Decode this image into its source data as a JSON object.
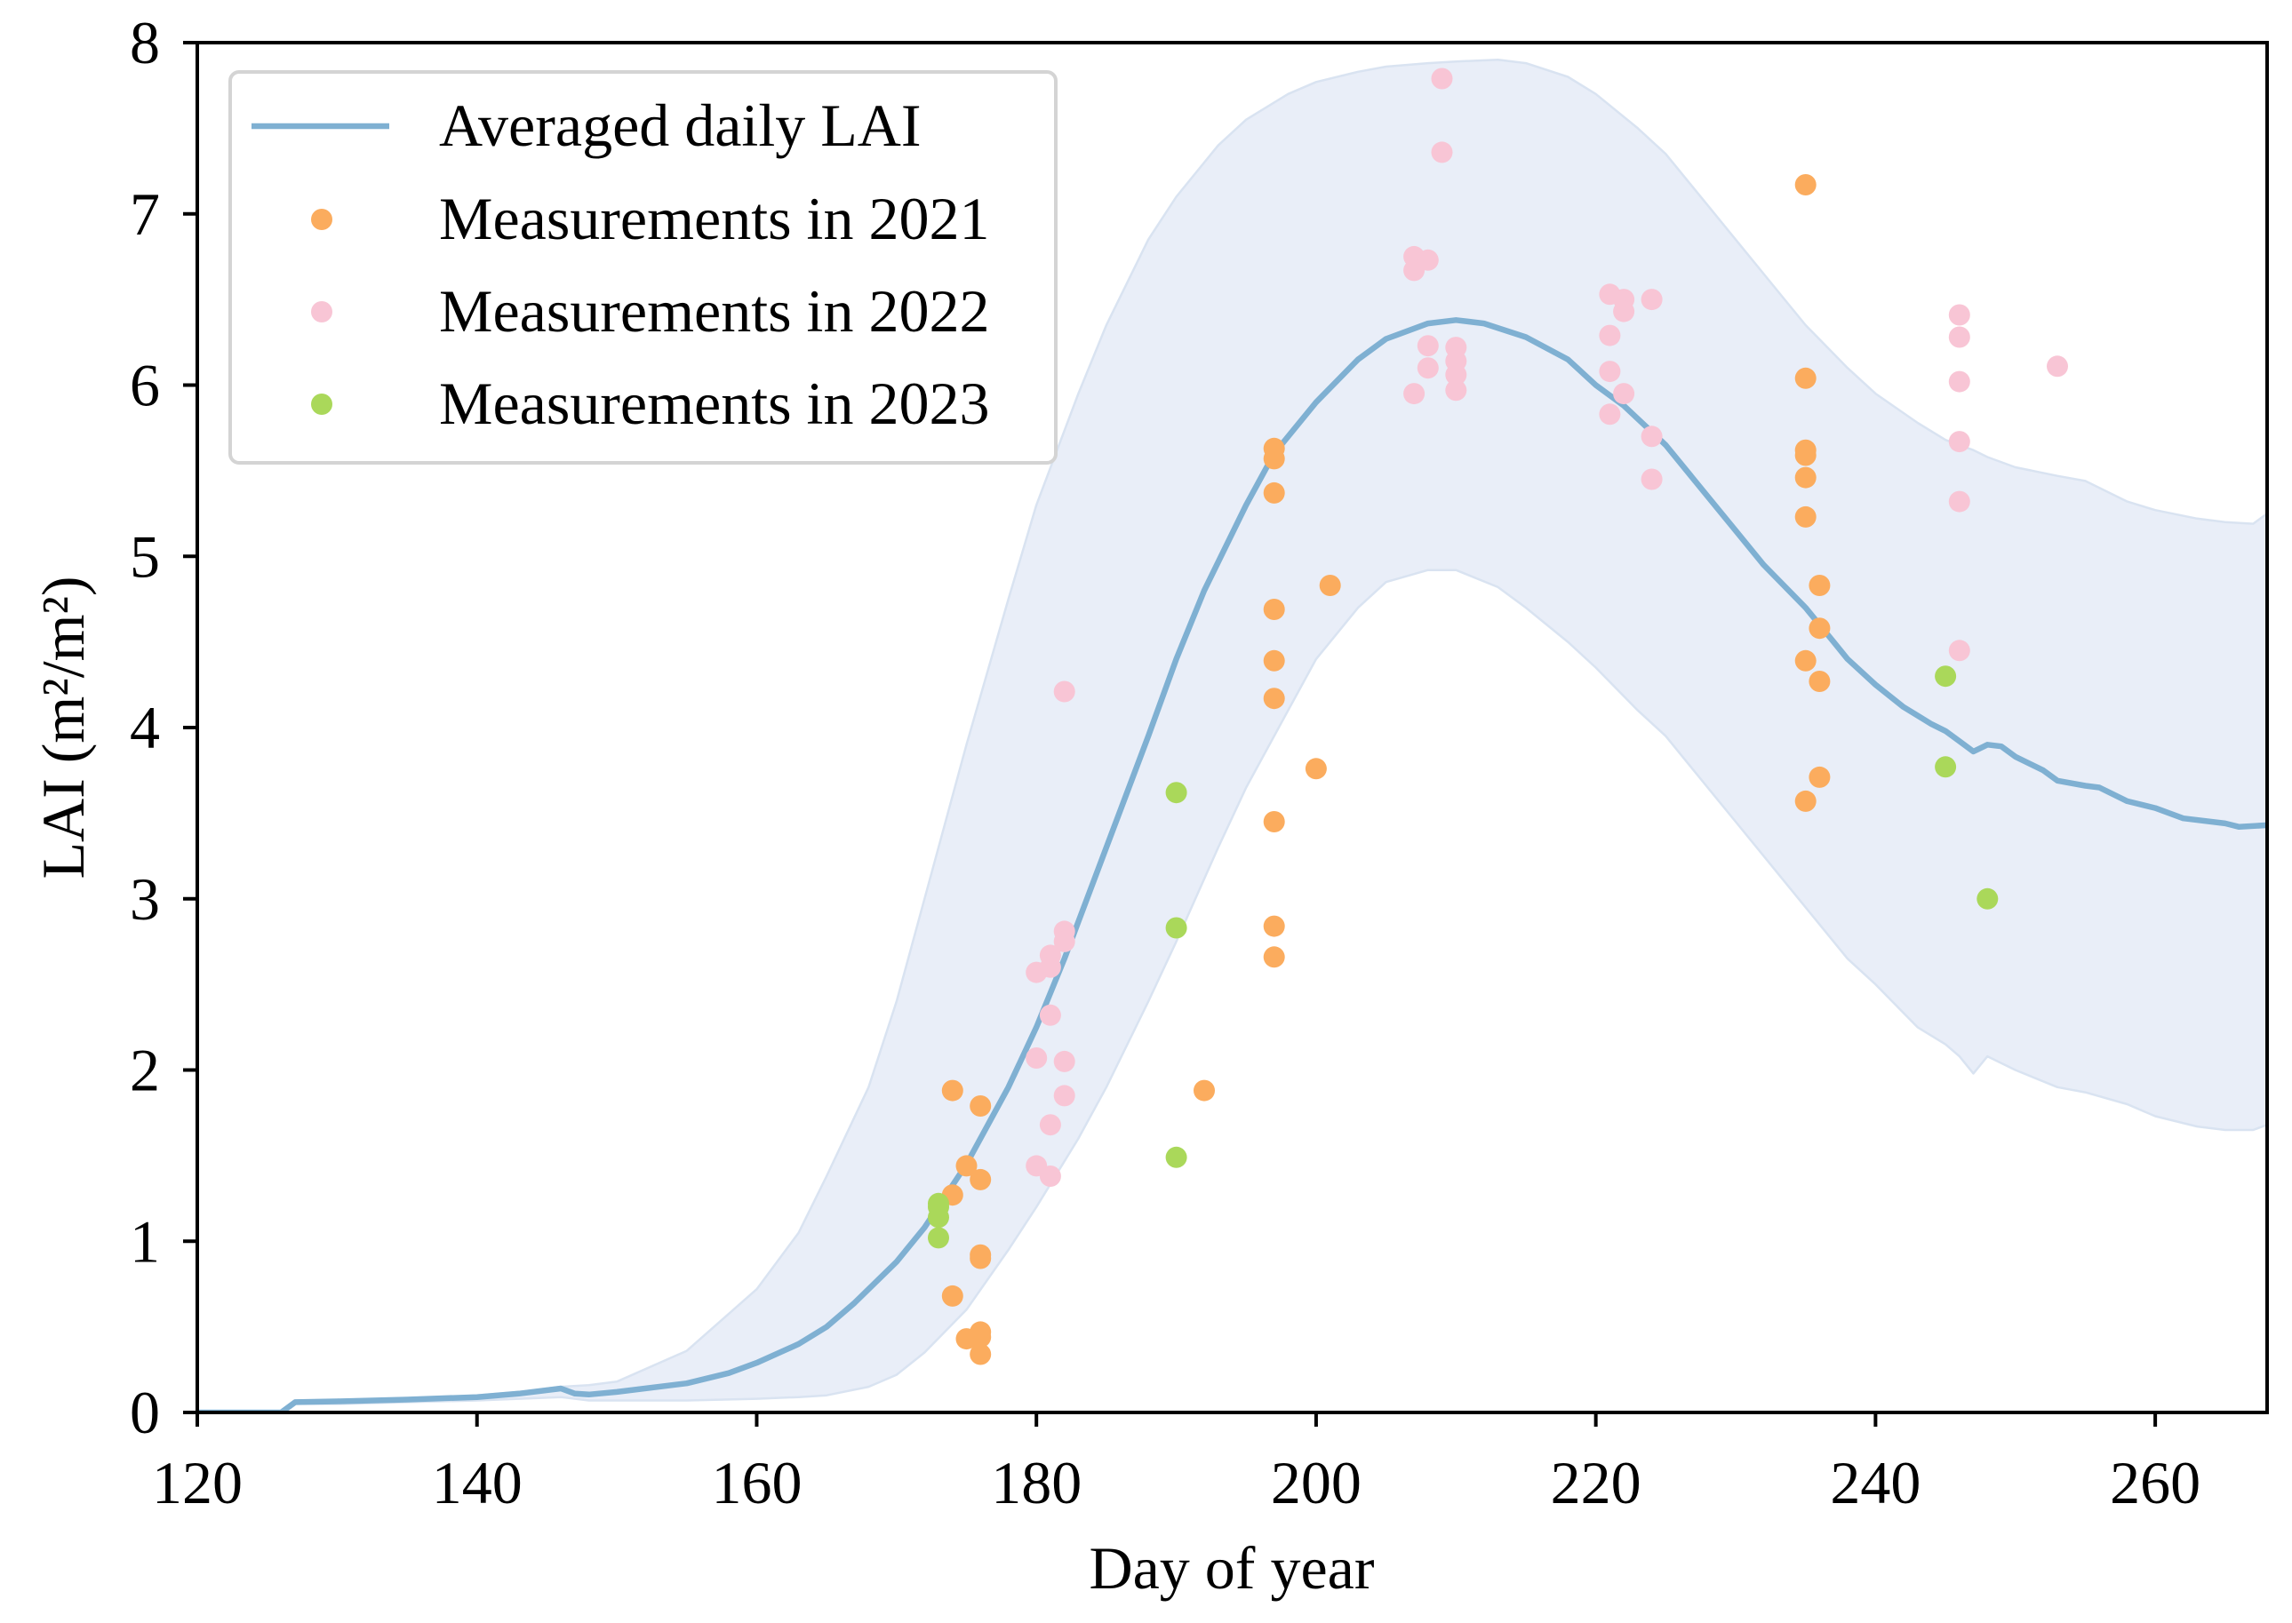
{
  "chart_data": {
    "type": "line",
    "xlabel": "Day of year",
    "ylabel": "LAI (m²/m²)",
    "xlim": [
      120,
      268
    ],
    "ylim": [
      0,
      8
    ],
    "xticks": [
      120,
      140,
      160,
      180,
      200,
      220,
      240,
      260
    ],
    "yticks": [
      0,
      1,
      2,
      3,
      4,
      5,
      6,
      7,
      8
    ],
    "grid": false,
    "legend_position": "top-left",
    "band": {
      "color": "#e9eef8",
      "edge_color": "#d9e3f1",
      "upper": [
        [
          120,
          0
        ],
        [
          126,
          0
        ],
        [
          127,
          0.06
        ],
        [
          130,
          0.07
        ],
        [
          135,
          0.08
        ],
        [
          140,
          0.1
        ],
        [
          143,
          0.12
        ],
        [
          146,
          0.15
        ],
        [
          148,
          0.16
        ],
        [
          150,
          0.18
        ],
        [
          155,
          0.36
        ],
        [
          160,
          0.72
        ],
        [
          163,
          1.05
        ],
        [
          165,
          1.38
        ],
        [
          168,
          1.9
        ],
        [
          170,
          2.4
        ],
        [
          172,
          3.0
        ],
        [
          175,
          3.9
        ],
        [
          178,
          4.75
        ],
        [
          180,
          5.3
        ],
        [
          183,
          5.95
        ],
        [
          185,
          6.35
        ],
        [
          188,
          6.85
        ],
        [
          190,
          7.1
        ],
        [
          193,
          7.4
        ],
        [
          195,
          7.55
        ],
        [
          198,
          7.7
        ],
        [
          200,
          7.77
        ],
        [
          203,
          7.83
        ],
        [
          205,
          7.86
        ],
        [
          208,
          7.88
        ],
        [
          210,
          7.89
        ],
        [
          213,
          7.9
        ],
        [
          215,
          7.88
        ],
        [
          218,
          7.8
        ],
        [
          220,
          7.7
        ],
        [
          223,
          7.5
        ],
        [
          225,
          7.35
        ],
        [
          228,
          7.05
        ],
        [
          230,
          6.85
        ],
        [
          233,
          6.55
        ],
        [
          235,
          6.35
        ],
        [
          238,
          6.1
        ],
        [
          240,
          5.95
        ],
        [
          243,
          5.78
        ],
        [
          245,
          5.68
        ],
        [
          246,
          5.65
        ],
        [
          247,
          5.62
        ],
        [
          248,
          5.58
        ],
        [
          250,
          5.52
        ],
        [
          253,
          5.47
        ],
        [
          255,
          5.44
        ],
        [
          258,
          5.32
        ],
        [
          260,
          5.27
        ],
        [
          263,
          5.22
        ],
        [
          265,
          5.2
        ],
        [
          267,
          5.19
        ],
        [
          268,
          5.25
        ]
      ],
      "lower": [
        [
          120,
          0
        ],
        [
          126,
          0
        ],
        [
          127,
          0.05
        ],
        [
          130,
          0.05
        ],
        [
          135,
          0.06
        ],
        [
          140,
          0.07
        ],
        [
          143,
          0.08
        ],
        [
          146,
          0.09
        ],
        [
          148,
          0.07
        ],
        [
          150,
          0.07
        ],
        [
          155,
          0.07
        ],
        [
          160,
          0.08
        ],
        [
          163,
          0.09
        ],
        [
          165,
          0.1
        ],
        [
          168,
          0.15
        ],
        [
          170,
          0.22
        ],
        [
          172,
          0.35
        ],
        [
          175,
          0.6
        ],
        [
          178,
          0.95
        ],
        [
          180,
          1.2
        ],
        [
          183,
          1.6
        ],
        [
          185,
          1.9
        ],
        [
          188,
          2.4
        ],
        [
          190,
          2.75
        ],
        [
          193,
          3.3
        ],
        [
          195,
          3.65
        ],
        [
          198,
          4.1
        ],
        [
          200,
          4.4
        ],
        [
          203,
          4.7
        ],
        [
          205,
          4.85
        ],
        [
          208,
          4.92
        ],
        [
          210,
          4.92
        ],
        [
          213,
          4.82
        ],
        [
          215,
          4.7
        ],
        [
          218,
          4.5
        ],
        [
          220,
          4.35
        ],
        [
          223,
          4.1
        ],
        [
          225,
          3.95
        ],
        [
          228,
          3.65
        ],
        [
          230,
          3.45
        ],
        [
          233,
          3.15
        ],
        [
          235,
          2.95
        ],
        [
          238,
          2.65
        ],
        [
          240,
          2.5
        ],
        [
          243,
          2.25
        ],
        [
          245,
          2.15
        ],
        [
          246,
          2.08
        ],
        [
          247,
          1.98
        ],
        [
          248,
          2.08
        ],
        [
          250,
          2.0
        ],
        [
          253,
          1.9
        ],
        [
          255,
          1.87
        ],
        [
          258,
          1.8
        ],
        [
          260,
          1.73
        ],
        [
          263,
          1.67
        ],
        [
          265,
          1.65
        ],
        [
          267,
          1.65
        ],
        [
          268,
          1.68
        ]
      ]
    },
    "series": [
      {
        "name": "Averaged daily LAI",
        "type": "line",
        "color": "#7fb0d2",
        "points": [
          [
            120,
            0
          ],
          [
            126,
            0
          ],
          [
            127,
            0.06
          ],
          [
            130,
            0.065
          ],
          [
            135,
            0.075
          ],
          [
            140,
            0.09
          ],
          [
            143,
            0.11
          ],
          [
            146,
            0.14
          ],
          [
            147,
            0.11
          ],
          [
            148,
            0.105
          ],
          [
            150,
            0.12
          ],
          [
            155,
            0.17
          ],
          [
            158,
            0.23
          ],
          [
            160,
            0.29
          ],
          [
            163,
            0.4
          ],
          [
            165,
            0.5
          ],
          [
            167,
            0.64
          ],
          [
            170,
            0.88
          ],
          [
            172,
            1.08
          ],
          [
            175,
            1.45
          ],
          [
            178,
            1.9
          ],
          [
            180,
            2.25
          ],
          [
            182,
            2.65
          ],
          [
            185,
            3.3
          ],
          [
            188,
            3.95
          ],
          [
            190,
            4.4
          ],
          [
            192,
            4.8
          ],
          [
            195,
            5.3
          ],
          [
            197,
            5.6
          ],
          [
            200,
            5.9
          ],
          [
            203,
            6.15
          ],
          [
            205,
            6.27
          ],
          [
            208,
            6.36
          ],
          [
            210,
            6.38
          ],
          [
            212,
            6.36
          ],
          [
            215,
            6.28
          ],
          [
            218,
            6.15
          ],
          [
            220,
            6.0
          ],
          [
            222,
            5.88
          ],
          [
            225,
            5.65
          ],
          [
            228,
            5.35
          ],
          [
            230,
            5.15
          ],
          [
            232,
            4.95
          ],
          [
            235,
            4.7
          ],
          [
            237,
            4.5
          ],
          [
            238,
            4.4
          ],
          [
            240,
            4.25
          ],
          [
            242,
            4.12
          ],
          [
            244,
            4.02
          ],
          [
            245,
            3.98
          ],
          [
            246,
            3.92
          ],
          [
            247,
            3.86
          ],
          [
            248,
            3.9
          ],
          [
            249,
            3.89
          ],
          [
            250,
            3.83
          ],
          [
            252,
            3.75
          ],
          [
            253,
            3.69
          ],
          [
            255,
            3.66
          ],
          [
            256,
            3.65
          ],
          [
            258,
            3.57
          ],
          [
            260,
            3.53
          ],
          [
            262,
            3.47
          ],
          [
            265,
            3.44
          ],
          [
            266,
            3.42
          ],
          [
            268,
            3.43
          ]
        ]
      },
      {
        "name": "Measurements in 2021",
        "type": "scatter",
        "color": "#fbac5e",
        "points": [
          [
            174,
            1.88
          ],
          [
            174,
            1.27
          ],
          [
            174,
            0.68
          ],
          [
            175,
            1.44
          ],
          [
            175,
            0.43
          ],
          [
            176,
            1.79
          ],
          [
            176,
            1.36
          ],
          [
            176,
            0.92
          ],
          [
            176,
            0.9
          ],
          [
            176,
            0.47
          ],
          [
            176,
            0.44
          ],
          [
            176,
            0.34
          ],
          [
            192,
            1.88
          ],
          [
            197,
            5.63
          ],
          [
            197,
            5.57
          ],
          [
            197,
            5.37
          ],
          [
            197,
            4.69
          ],
          [
            197,
            4.39
          ],
          [
            197,
            4.17
          ],
          [
            197,
            3.45
          ],
          [
            197,
            2.84
          ],
          [
            197,
            2.66
          ],
          [
            200,
            3.76
          ],
          [
            201,
            4.83
          ],
          [
            235,
            7.17
          ],
          [
            235,
            6.04
          ],
          [
            235,
            5.62
          ],
          [
            235,
            5.59
          ],
          [
            235,
            5.46
          ],
          [
            235,
            5.23
          ],
          [
            235,
            4.39
          ],
          [
            235,
            3.57
          ],
          [
            236,
            4.83
          ],
          [
            236,
            4.58
          ],
          [
            236,
            4.27
          ],
          [
            236,
            3.71
          ]
        ]
      },
      {
        "name": "Measurements in 2022",
        "type": "scatter",
        "color": "#f8c5d5",
        "points": [
          [
            180,
            2.57
          ],
          [
            180,
            2.07
          ],
          [
            180,
            1.44
          ],
          [
            181,
            2.67
          ],
          [
            181,
            2.6
          ],
          [
            181,
            2.32
          ],
          [
            181,
            1.68
          ],
          [
            181,
            1.38
          ],
          [
            182,
            4.21
          ],
          [
            182,
            2.81
          ],
          [
            182,
            2.75
          ],
          [
            182,
            2.05
          ],
          [
            182,
            1.85
          ],
          [
            207,
            6.75
          ],
          [
            207,
            6.67
          ],
          [
            207,
            5.95
          ],
          [
            208,
            6.73
          ],
          [
            208,
            6.23
          ],
          [
            208,
            6.1
          ],
          [
            209,
            7.79
          ],
          [
            209,
            7.36
          ],
          [
            210,
            6.22
          ],
          [
            210,
            6.14
          ],
          [
            210,
            6.06
          ],
          [
            210,
            5.97
          ],
          [
            221,
            6.53
          ],
          [
            221,
            6.29
          ],
          [
            221,
            6.08
          ],
          [
            221,
            5.83
          ],
          [
            222,
            6.5
          ],
          [
            222,
            6.43
          ],
          [
            222,
            5.95
          ],
          [
            224,
            6.5
          ],
          [
            224,
            5.7
          ],
          [
            224,
            5.45
          ],
          [
            246,
            6.41
          ],
          [
            246,
            6.28
          ],
          [
            246,
            6.02
          ],
          [
            246,
            5.67
          ],
          [
            246,
            5.32
          ],
          [
            246,
            4.45
          ],
          [
            253,
            6.11
          ]
        ]
      },
      {
        "name": "Measurements in 2023",
        "type": "scatter",
        "color": "#aad85a",
        "points": [
          [
            173,
            1.22
          ],
          [
            173,
            1.2
          ],
          [
            173,
            1.14
          ],
          [
            173,
            1.02
          ],
          [
            190,
            3.62
          ],
          [
            190,
            2.83
          ],
          [
            190,
            1.49
          ],
          [
            245,
            4.3
          ],
          [
            245,
            3.77
          ],
          [
            248,
            3.0
          ]
        ]
      }
    ]
  }
}
